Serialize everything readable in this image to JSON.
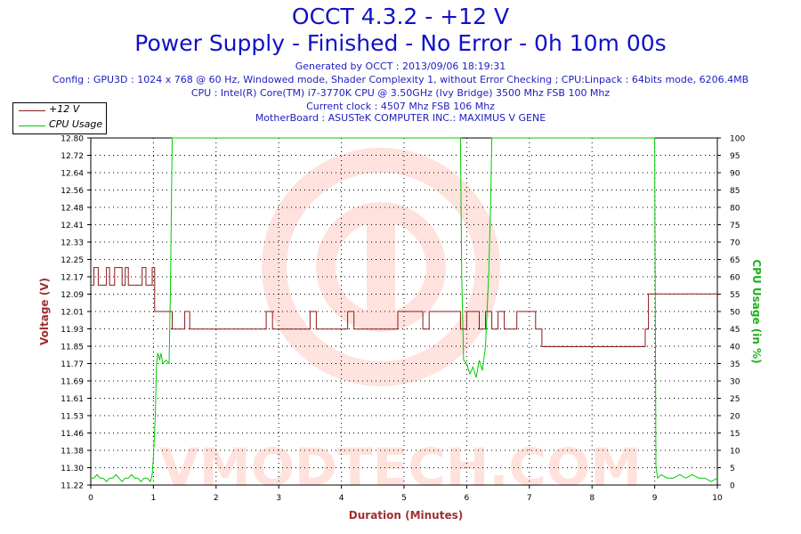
{
  "header": {
    "title_line1": "OCCT 4.3.2 - +12 V",
    "title_line2": "Power Supply - Finished - No Error - 0h 10m 00s",
    "generated": "Generated by OCCT : 2013/09/06 18:19:31",
    "config": "Config : GPU3D : 1024 x 768 @ 60 Hz, Windowed mode, Shader Complexity 1, without Error Checking ; CPU:Linpack : 64bits mode, 6206.4MB",
    "cpu": "CPU : Intel(R) Core(TM) i7-3770K CPU @ 3.50GHz (Ivy Bridge) 3500 Mhz FSB 100 Mhz",
    "clock": "Current clock : 4507 Mhz FSB 106 Mhz",
    "motherboard": "MotherBoard : ASUSTeK COMPUTER INC.: MAXIMUS V GENE"
  },
  "watermark": "VMODTECH.COM",
  "colors": {
    "voltage": "#8b1a1a",
    "cpu": "#00cc00",
    "title": "#1010c8",
    "info": "#2020c0",
    "axis_label_left": "#a03030",
    "axis_label_right": "#20b020",
    "xlabel": "#a03030"
  },
  "chart_data": {
    "type": "line",
    "xlabel": "Duration (Minutes)",
    "ylabel_left": "Voltage (V)",
    "ylabel_right": "CPU Usage (in %)",
    "xlim": [
      0,
      10
    ],
    "ylim_left": [
      11.22,
      12.8
    ],
    "ylim_right": [
      0,
      100
    ],
    "x_ticks": [
      "0",
      "1",
      "2",
      "3",
      "4",
      "5",
      "6",
      "7",
      "8",
      "9",
      "10"
    ],
    "y_left_ticks": [
      "11.22",
      "11.30",
      "11.38",
      "11.46",
      "11.53",
      "11.61",
      "11.69",
      "11.77",
      "11.85",
      "11.93",
      "12.01",
      "12.09",
      "12.17",
      "12.25",
      "12.33",
      "12.41",
      "12.48",
      "12.56",
      "12.64",
      "12.72",
      "12.80"
    ],
    "y_right_ticks": [
      "0",
      "5",
      "10",
      "15",
      "20",
      "25",
      "30",
      "35",
      "40",
      "45",
      "50",
      "55",
      "60",
      "65",
      "70",
      "75",
      "80",
      "85",
      "90",
      "95",
      "100"
    ],
    "grid": true,
    "legend_position": "top-left",
    "series": [
      {
        "name": "+12 V",
        "axis": "left",
        "x": [
          0,
          0.05,
          0.05,
          0.12,
          0.12,
          0.25,
          0.25,
          0.3,
          0.3,
          0.38,
          0.38,
          0.5,
          0.5,
          0.55,
          0.55,
          0.6,
          0.6,
          0.82,
          0.82,
          0.88,
          0.88,
          0.98,
          0.98,
          1.02,
          1.02,
          1.3,
          1.3,
          1.5,
          1.5,
          1.58,
          1.58,
          2.8,
          2.8,
          2.9,
          2.9,
          3.5,
          3.5,
          3.6,
          3.6,
          4.1,
          4.1,
          4.2,
          4.2,
          4.9,
          4.9,
          5.3,
          5.3,
          5.4,
          5.4,
          5.9,
          5.9,
          6.0,
          6.0,
          6.2,
          6.2,
          6.3,
          6.3,
          6.4,
          6.4,
          6.5,
          6.5,
          6.6,
          6.6,
          6.8,
          6.8,
          7.1,
          7.1,
          7.2,
          7.2,
          8.85,
          8.85,
          8.9,
          8.9,
          9.05,
          9.05,
          10
        ],
        "y": [
          12.13,
          12.13,
          12.21,
          12.21,
          12.13,
          12.13,
          12.21,
          12.21,
          12.13,
          12.13,
          12.21,
          12.21,
          12.13,
          12.13,
          12.21,
          12.21,
          12.13,
          12.13,
          12.21,
          12.21,
          12.13,
          12.13,
          12.21,
          12.21,
          12.01,
          12.01,
          11.93,
          11.93,
          12.01,
          12.01,
          11.93,
          11.93,
          12.01,
          12.01,
          11.93,
          11.93,
          12.01,
          12.01,
          11.93,
          11.93,
          12.01,
          12.01,
          11.93,
          11.93,
          12.01,
          12.01,
          11.93,
          11.93,
          12.01,
          12.01,
          11.93,
          11.93,
          12.01,
          12.01,
          11.93,
          11.93,
          12.01,
          12.01,
          11.93,
          11.93,
          12.01,
          12.01,
          11.93,
          11.93,
          12.01,
          12.01,
          11.93,
          11.93,
          11.85,
          11.85,
          11.93,
          11.93,
          12.09,
          12.09,
          12.09,
          12.09
        ]
      },
      {
        "name": "CPU Usage",
        "axis": "right",
        "x": [
          0,
          0.05,
          0.1,
          0.15,
          0.2,
          0.25,
          0.3,
          0.35,
          0.4,
          0.45,
          0.5,
          0.55,
          0.6,
          0.65,
          0.7,
          0.75,
          0.8,
          0.85,
          0.9,
          0.95,
          0.98,
          1.0,
          1.03,
          1.05,
          1.07,
          1.1,
          1.12,
          1.15,
          1.2,
          1.25,
          1.27,
          1.3,
          1.33,
          5.9,
          5.92,
          5.95,
          6.0,
          6.05,
          6.1,
          6.15,
          6.2,
          6.25,
          6.3,
          6.35,
          6.38,
          6.4,
          9.0,
          9.02,
          9.05,
          9.1,
          9.2,
          9.3,
          9.4,
          9.5,
          9.6,
          9.7,
          9.8,
          9.9,
          10
        ],
        "y": [
          2,
          2,
          3,
          2,
          2,
          1,
          2,
          2,
          3,
          2,
          1,
          2,
          2,
          3,
          2,
          2,
          1,
          2,
          2,
          1,
          3,
          8,
          20,
          35,
          38,
          36,
          38,
          35,
          36,
          35,
          55,
          100,
          100,
          100,
          60,
          36,
          35,
          32,
          34,
          31,
          36,
          33,
          40,
          60,
          80,
          100,
          100,
          5,
          2,
          3,
          2,
          2,
          3,
          2,
          3,
          2,
          2,
          1,
          2
        ]
      }
    ]
  }
}
